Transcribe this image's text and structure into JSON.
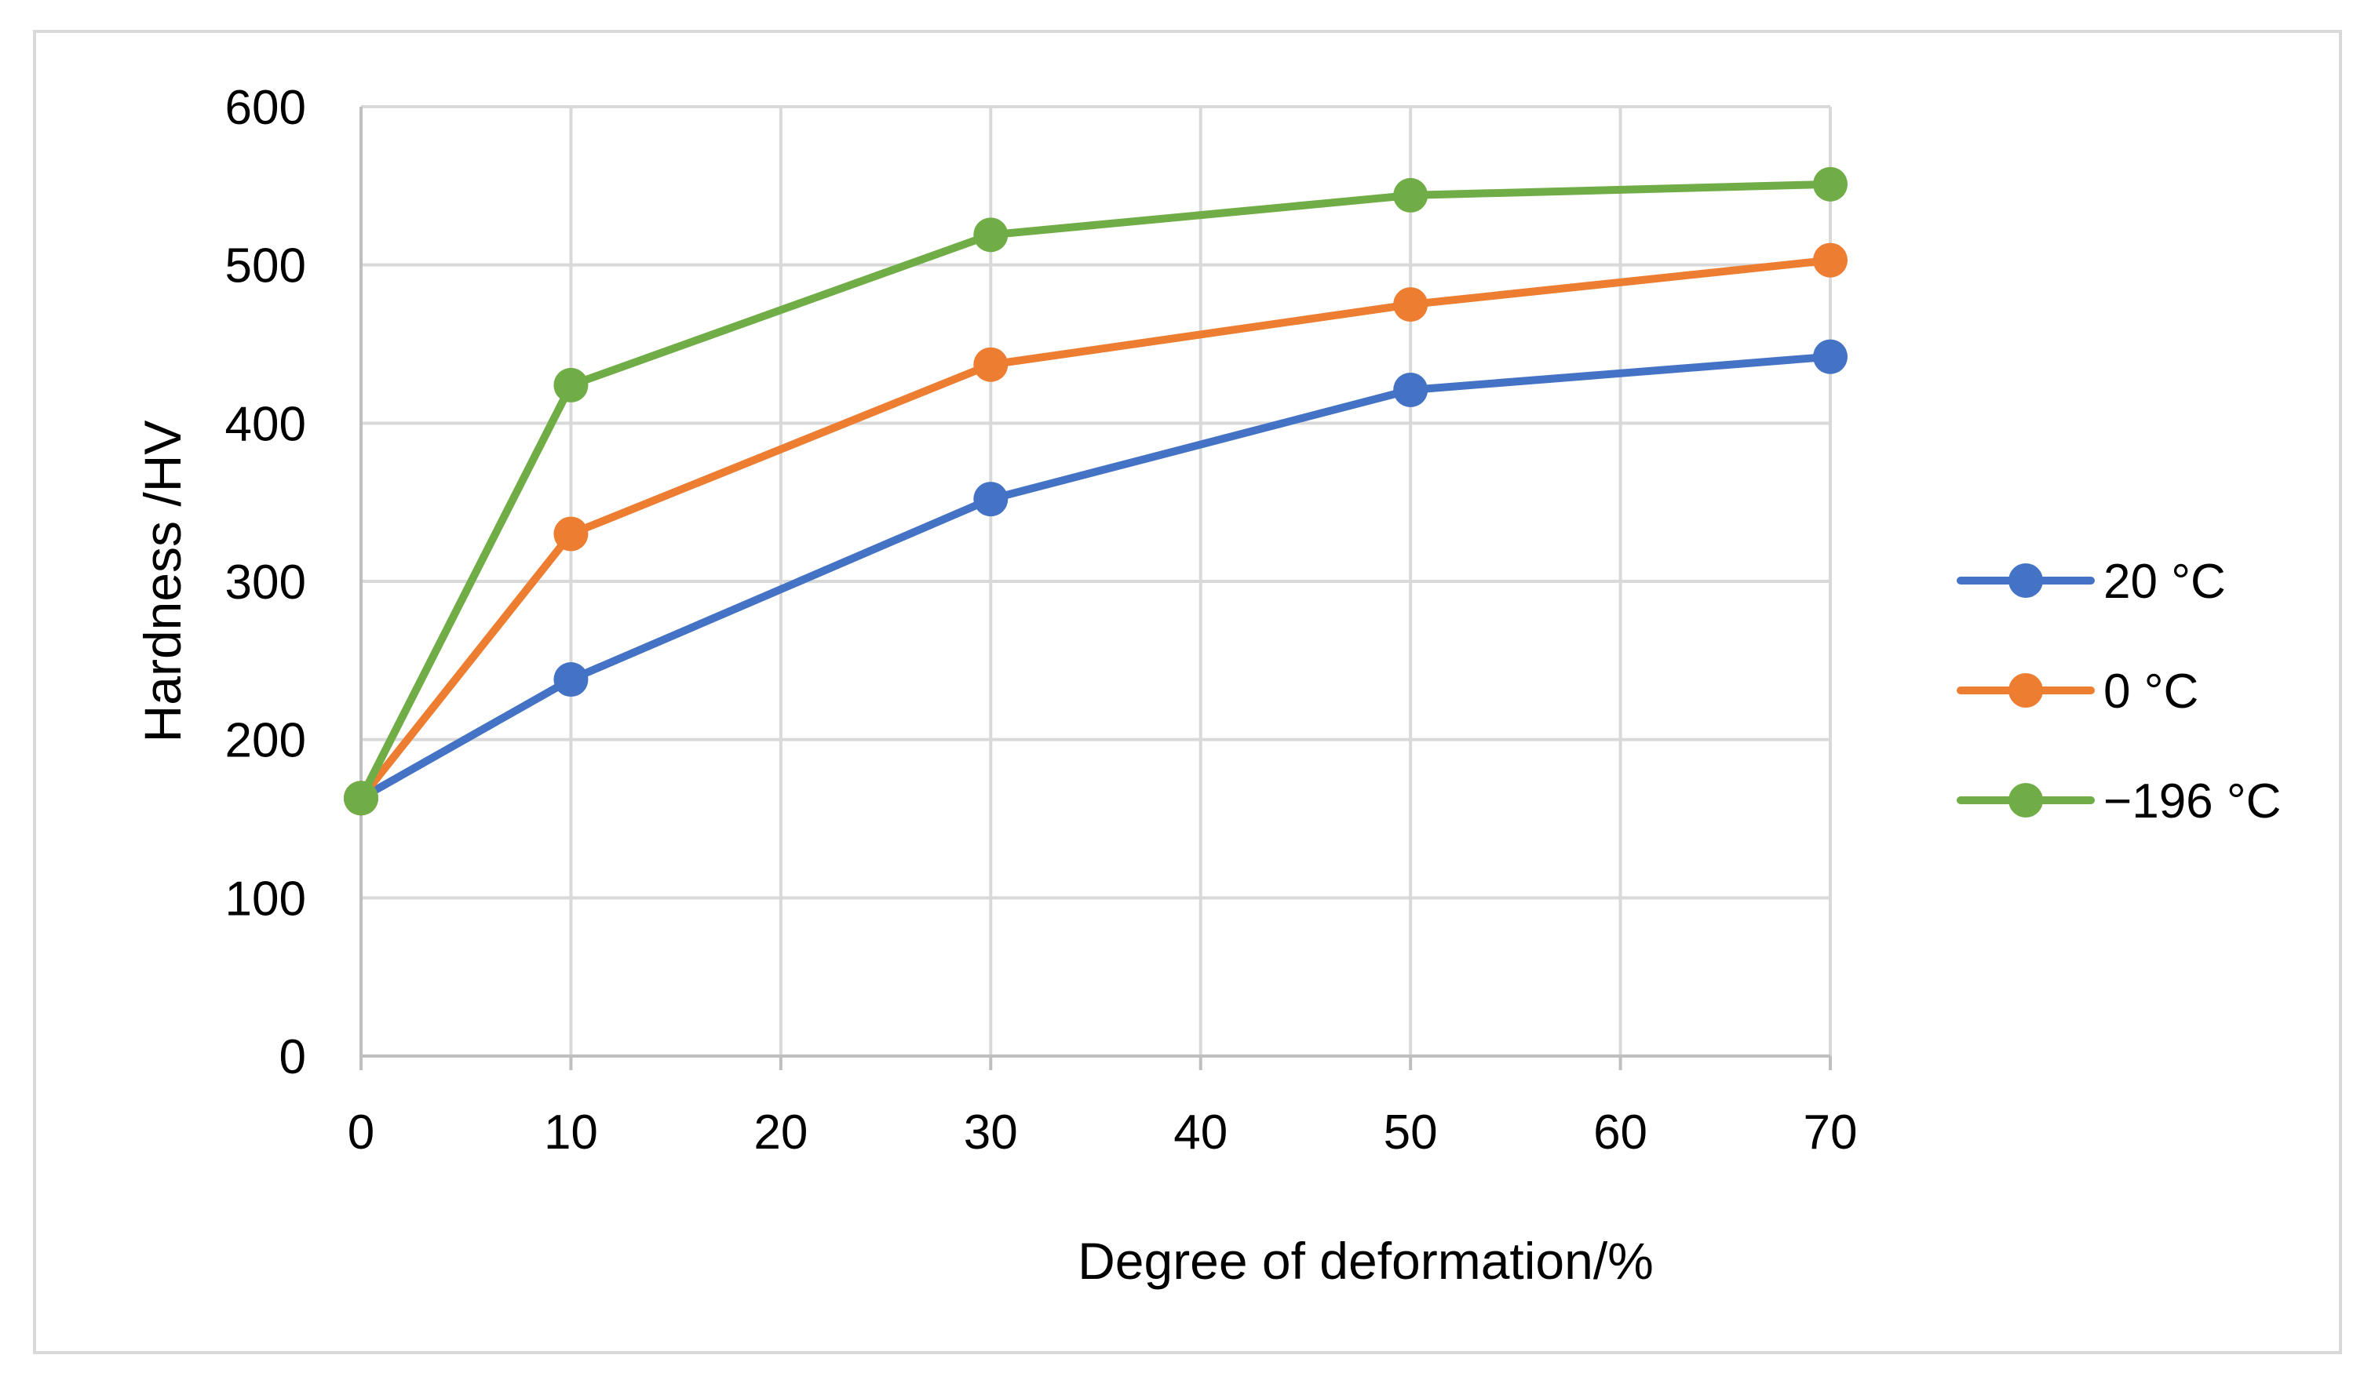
{
  "chart_data": {
    "type": "line",
    "title": "",
    "xlabel": "Degree of deformation/%",
    "ylabel": "Hardness /HV",
    "xlim": [
      0,
      70
    ],
    "ylim": [
      0,
      600
    ],
    "xticks": [
      0,
      10,
      20,
      30,
      40,
      50,
      60,
      70
    ],
    "yticks": [
      0,
      100,
      200,
      300,
      400,
      500,
      600
    ],
    "grid": true,
    "legend_position": "right",
    "series": [
      {
        "name": "20 °C",
        "color": "#4472C4",
        "x": [
          0,
          10,
          30,
          50,
          70
        ],
        "y": [
          163,
          238,
          352,
          421,
          442
        ]
      },
      {
        "name": "0 °C",
        "color": "#ED7D31",
        "x": [
          0,
          10,
          30,
          50,
          70
        ],
        "y": [
          163,
          330,
          437,
          475,
          503
        ]
      },
      {
        "name": "−196 °C",
        "color": "#70AD47",
        "x": [
          0,
          10,
          30,
          50,
          70
        ],
        "y": [
          163,
          424,
          519,
          544,
          551
        ]
      }
    ]
  }
}
